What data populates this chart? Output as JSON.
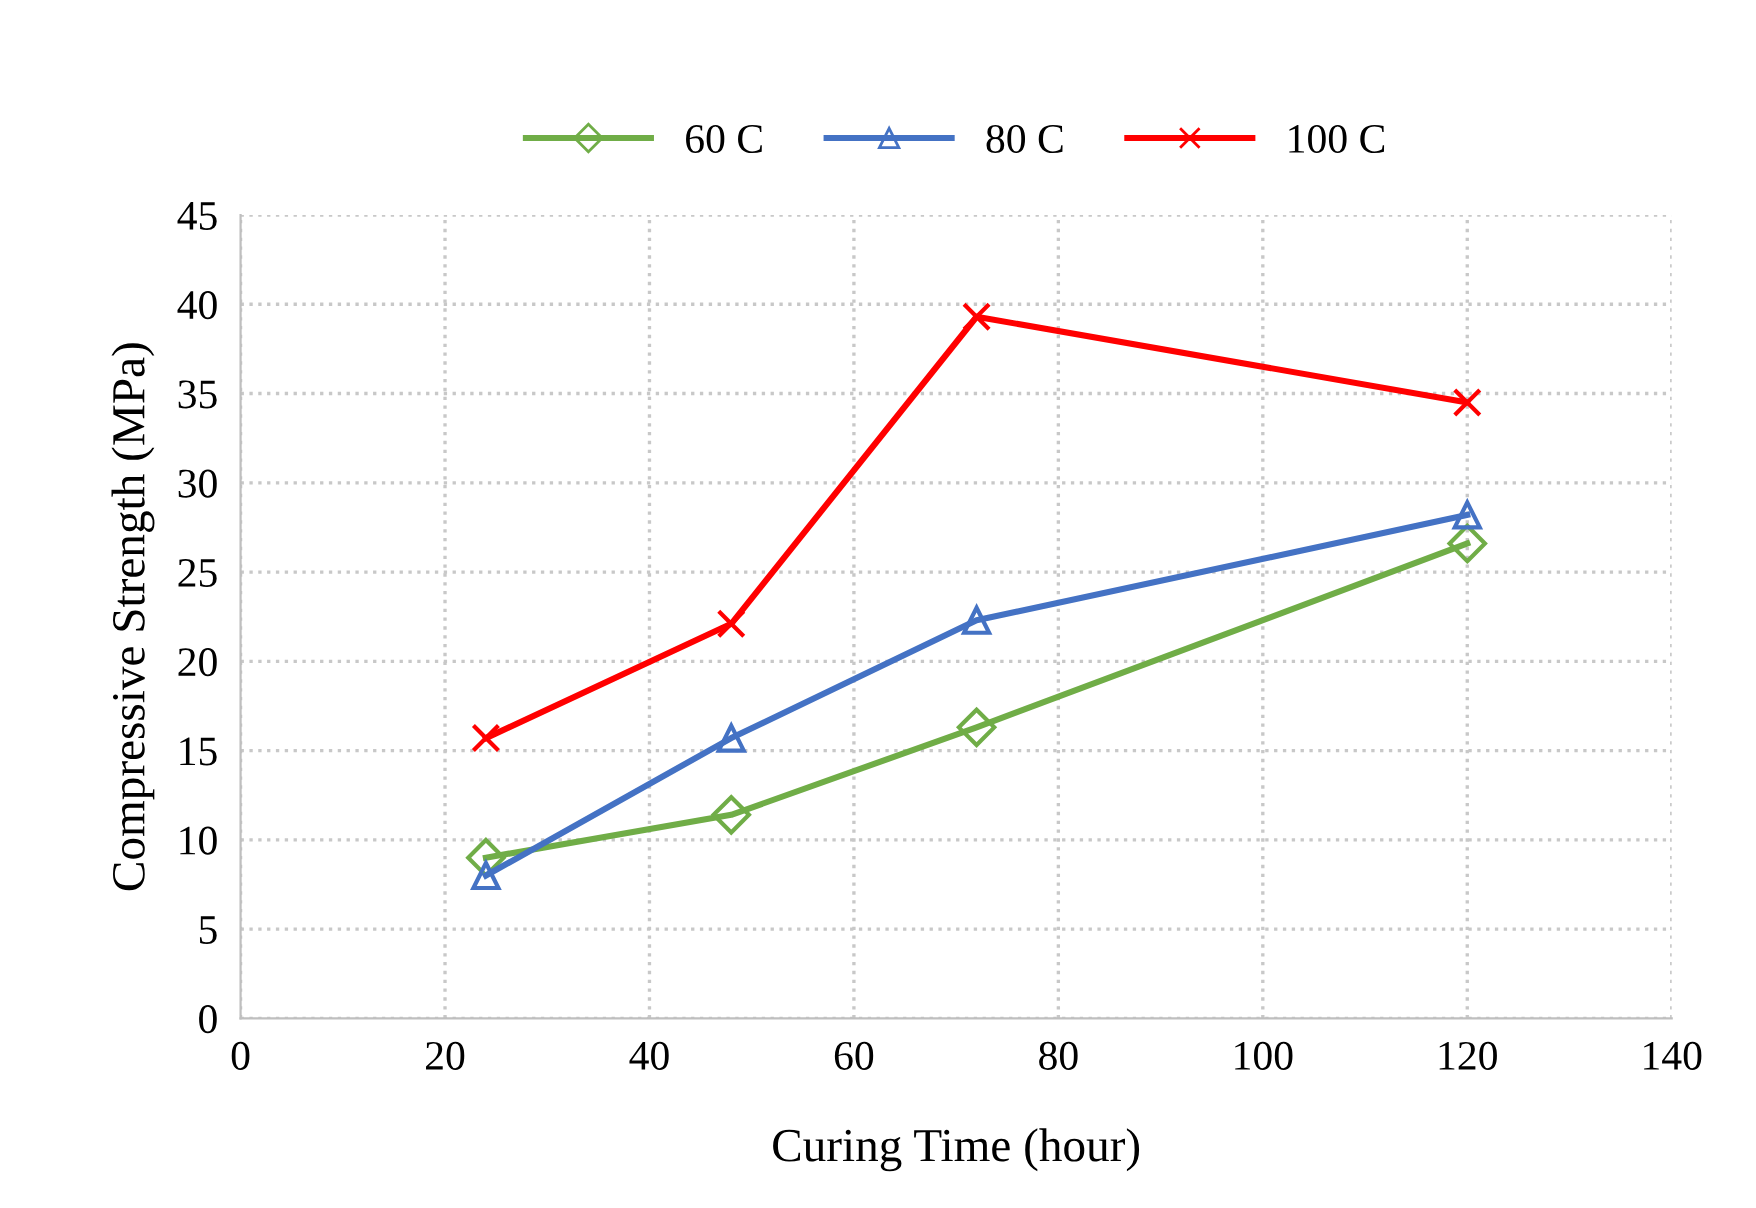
{
  "chart_data": {
    "type": "line",
    "xlabel": "Curing Time (hour)",
    "ylabel": "Compressive Strength (MPa)",
    "x": [
      24,
      48,
      72,
      120
    ],
    "series": [
      {
        "name": "60 C",
        "color": "#70ad47",
        "marker": "diamond",
        "values": [
          9.0,
          11.4,
          16.3,
          26.6
        ]
      },
      {
        "name": "80 C",
        "color": "#4472c4",
        "marker": "triangle",
        "values": [
          8.0,
          15.7,
          22.3,
          28.2
        ]
      },
      {
        "name": "100 C",
        "color": "#ff0000",
        "marker": "cross",
        "values": [
          15.7,
          22.1,
          39.3,
          34.5
        ]
      }
    ],
    "xlim": [
      0,
      140
    ],
    "xticks": [
      0,
      20,
      40,
      60,
      80,
      100,
      120,
      140
    ],
    "ylim": [
      0,
      45
    ],
    "yticks": [
      0,
      5,
      10,
      15,
      20,
      25,
      30,
      35,
      40,
      45
    ],
    "grid": true,
    "legend": "top"
  }
}
